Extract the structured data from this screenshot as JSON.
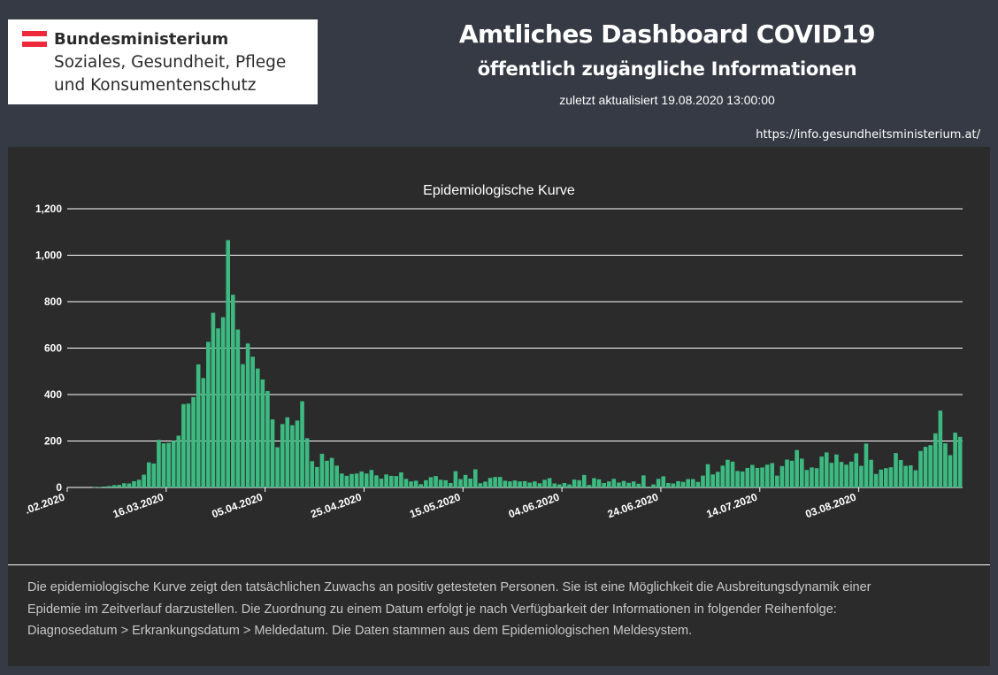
{
  "logo": {
    "line1": "Bundesministerium",
    "line2": "Soziales, Gesundheit, Pflege",
    "line3": "und Konsumentenschutz",
    "flag_colors": [
      "#ed2939",
      "#ffffff",
      "#ed2939"
    ]
  },
  "header": {
    "title": "Amtliches Dashboard COVID19",
    "subtitle": "öffentlich zugängliche Informationen",
    "updated": "zuletzt aktualisiert 19.08.2020 13:00:00",
    "url": "https://info.gesundheitsministerium.at/"
  },
  "description": {
    "line1": "Die epidemiologische Kurve zeigt den tatsächlichen Zuwachs an positiv getesteten Personen. Sie ist eine Möglichkeit die Ausbreitungsdynamik einer",
    "line2": "Epidemie im Zeitverlauf darzustellen. Die Zuordnung zu einem Datum erfolgt je nach Verfügbarkeit der Informationen in folgender Reihenfolge:",
    "line3": "Diagnosedatum > Erkrankungsdatum > Meldedatum. Die Daten stammen aus dem Epidemiologischen Meldesystem."
  },
  "chart_data": {
    "type": "bar",
    "title": "Epidemiologische Kurve",
    "bar_color": "#3dba82",
    "grid": true,
    "ylim": [
      0,
      1200
    ],
    "yticks": [
      0,
      200,
      400,
      600,
      800,
      1000,
      1200
    ],
    "ytick_labels": [
      "0",
      "200",
      "400",
      "600",
      "800",
      "1,000",
      "1,200"
    ],
    "xtick_labels": [
      ".02.2020",
      "16.03.2020",
      "05.04.2020",
      "25.04.2020",
      "15.05.2020",
      "04.06.2020",
      "24.06.2020",
      "14.07.2020",
      "03.08.2020"
    ],
    "xtick_index": [
      0,
      20,
      40,
      60,
      80,
      100,
      120,
      140,
      160
    ],
    "values": [
      0,
      0,
      0,
      0,
      0,
      1,
      2,
      4,
      6,
      10,
      11,
      18,
      17,
      27,
      33,
      55,
      108,
      103,
      205,
      190,
      192,
      201,
      223,
      359,
      361,
      389,
      530,
      471,
      627,
      752,
      685,
      733,
      1065,
      830,
      680,
      531,
      620,
      563,
      512,
      465,
      415,
      293,
      173,
      273,
      302,
      268,
      288,
      371,
      212,
      113,
      88,
      145,
      115,
      127,
      94,
      60,
      50,
      58,
      60,
      69,
      60,
      75,
      52,
      38,
      56,
      50,
      49,
      65,
      37,
      26,
      29,
      14,
      31,
      44,
      49,
      33,
      31,
      19,
      70,
      36,
      54,
      38,
      78,
      18,
      25,
      41,
      45,
      45,
      29,
      26,
      30,
      26,
      27,
      21,
      26,
      18,
      33,
      40,
      17,
      13,
      19,
      13,
      34,
      31,
      54,
      11,
      40,
      35,
      19,
      26,
      37,
      21,
      28,
      20,
      26,
      16,
      52,
      4,
      13,
      37,
      48,
      19,
      17,
      27,
      24,
      36,
      36,
      24,
      51,
      100,
      56,
      67,
      94,
      119,
      111,
      71,
      69,
      84,
      97,
      84,
      86,
      98,
      105,
      51,
      92,
      120,
      115,
      161,
      124,
      75,
      86,
      83,
      133,
      151,
      106,
      142,
      110,
      98,
      111,
      147,
      93,
      189,
      119,
      58,
      77,
      83,
      87,
      148,
      118,
      93,
      95,
      74,
      157,
      175,
      182,
      233,
      331,
      190,
      139,
      236,
      218
    ]
  }
}
